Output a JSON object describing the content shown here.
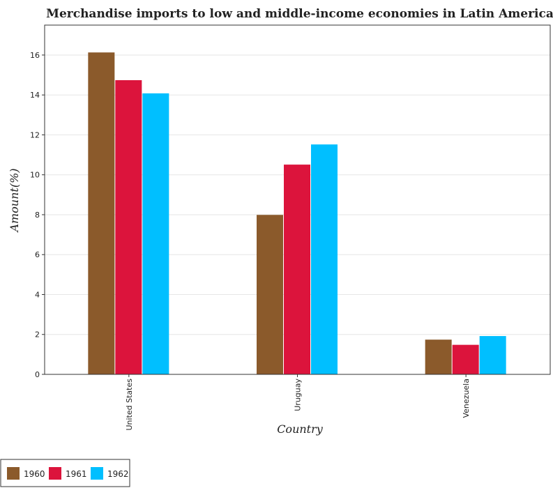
{
  "chart_data": {
    "type": "bar",
    "title": "Merchandise imports to low and middle-income economies in Latin America",
    "xlabel": "Country",
    "ylabel": "Amount(%)",
    "categories": [
      "United States",
      "Uruguay",
      "Venezuela"
    ],
    "series": [
      {
        "name": "1960",
        "color": "#8B5A2B",
        "values": [
          16.13,
          7.99,
          1.74
        ]
      },
      {
        "name": "1961",
        "color": "#DC143C",
        "values": [
          14.74,
          10.51,
          1.48
        ]
      },
      {
        "name": "1962",
        "color": "#00BFFF",
        "values": [
          14.08,
          11.52,
          1.92
        ]
      }
    ],
    "ylim": [
      0,
      17.5
    ],
    "yticks": [
      0,
      2,
      4,
      6,
      8,
      10,
      12,
      14,
      16
    ],
    "grid": true,
    "legend": "bottom-left"
  }
}
